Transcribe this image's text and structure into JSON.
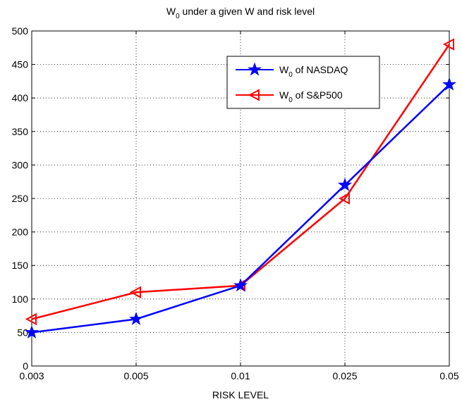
{
  "chart_data": {
    "type": "line",
    "title": "W0 under a given W and risk level",
    "title_parts": {
      "main": "W",
      "sub": "0",
      "rest": " under a given W and risk level"
    },
    "xlabel": "RISK LEVEL",
    "ylabel": "",
    "categories": [
      "0.003",
      "0.005",
      "0.01",
      "0.025",
      "0.05"
    ],
    "ylim": [
      0,
      500
    ],
    "yticks": [
      0,
      50,
      100,
      150,
      200,
      250,
      300,
      350,
      400,
      450,
      500
    ],
    "grid": true,
    "legend_position": "top-right",
    "series": [
      {
        "name": "W0 of NASDAQ",
        "name_parts": {
          "main": "W",
          "sub": "0",
          "rest": " of NASDAQ"
        },
        "color": "#0000ff",
        "marker": "star",
        "values": [
          50,
          70,
          120,
          270,
          420
        ]
      },
      {
        "name": "W0 of S&P500",
        "name_parts": {
          "main": "W",
          "sub": "0",
          "rest": " of S&P500"
        },
        "color": "#ff0000",
        "marker": "triangle-left",
        "values": [
          70,
          110,
          120,
          250,
          480
        ]
      }
    ]
  }
}
